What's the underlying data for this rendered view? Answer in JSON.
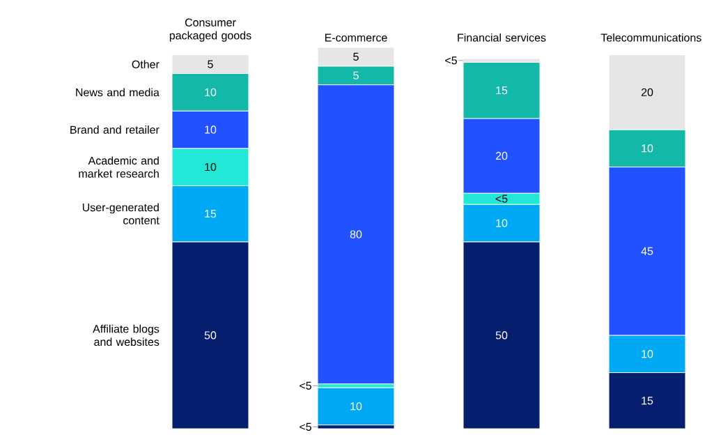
{
  "chart_data": {
    "type": "bar",
    "stacked": true,
    "categories": [
      "Consumer packaged goods",
      "E-commerce",
      "Financial services",
      "Telecommunications"
    ],
    "series": [
      {
        "name": "Affiliate blogs and websites",
        "color": "#061e6e",
        "values": [
          50,
          1,
          50,
          15
        ],
        "value_labels": [
          "50",
          "<5",
          "50",
          "15"
        ]
      },
      {
        "name": "User-generated content",
        "color": "#00a9f4",
        "values": [
          15,
          10,
          10,
          10
        ],
        "value_labels": [
          "15",
          "10",
          "10",
          "10"
        ]
      },
      {
        "name": "Academic and market research",
        "color": "#22e8d8",
        "values": [
          10,
          1,
          3,
          null
        ],
        "value_labels": [
          "10",
          "<5",
          "<5",
          null
        ]
      },
      {
        "name": "Brand and retailer",
        "color": "#2251ff",
        "values": [
          10,
          80,
          20,
          45
        ],
        "value_labels": [
          "10",
          "80",
          "20",
          "45"
        ]
      },
      {
        "name": "News and media",
        "color": "#14b8a8",
        "values": [
          10,
          5,
          15,
          10
        ],
        "value_labels": [
          "10",
          "5",
          "15",
          "10"
        ]
      },
      {
        "name": "Other",
        "color": "#e6e6e6",
        "values": [
          5,
          5,
          1,
          20
        ],
        "value_labels": [
          "5",
          "5",
          "<5",
          "20"
        ]
      }
    ]
  }
}
